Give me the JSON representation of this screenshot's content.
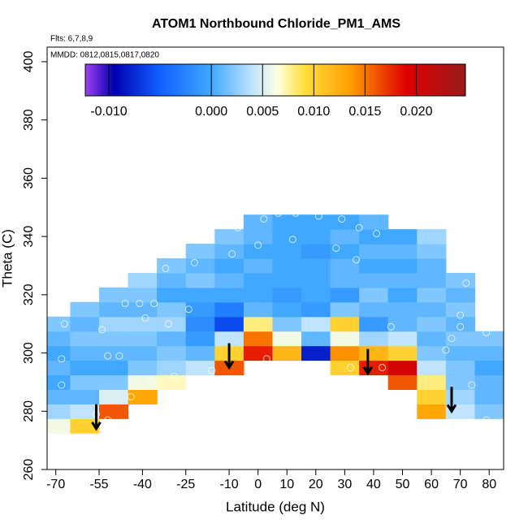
{
  "chart_data": {
    "type": "heatmap",
    "title": "ATOM1 Northbound Chloride_PM1_AMS",
    "annotations": [
      "Flts: 6,7,8,9",
      "MMDD: 0812,0815,0817,0820"
    ],
    "x_label": "Latitude (deg N)",
    "y_label": "Theta (C)",
    "xlim": [
      -73,
      85
    ],
    "ylim": [
      260,
      405
    ],
    "xticks": [
      -70,
      -55,
      -40,
      -25,
      -10,
      0,
      10,
      20,
      30,
      40,
      50,
      60,
      70,
      80
    ],
    "yticks": [
      260,
      280,
      300,
      320,
      340,
      360,
      380,
      400
    ],
    "x": [
      -70,
      -60,
      -50,
      -40,
      -30,
      -20,
      -10,
      0,
      10,
      20,
      30,
      40,
      50,
      60,
      70,
      80
    ],
    "y": [
      275,
      280,
      285,
      290,
      295,
      300,
      305,
      310,
      315,
      320,
      325,
      330,
      335,
      340,
      345
    ],
    "z": [
      [
        0.006,
        0.01,
        null,
        null,
        null,
        null,
        null,
        null,
        null,
        null,
        null,
        null,
        null,
        null,
        null,
        null
      ],
      [
        0.003,
        0.004,
        0.016,
        null,
        null,
        null,
        null,
        null,
        null,
        null,
        null,
        null,
        null,
        0.013,
        0.004,
        0.002
      ],
      [
        0.001,
        0.001,
        0.005,
        0.013,
        null,
        null,
        null,
        null,
        null,
        null,
        null,
        null,
        null,
        0.01,
        0.003,
        0.001
      ],
      [
        0.0,
        0.002,
        0.002,
        0.006,
        0.007,
        null,
        null,
        null,
        null,
        null,
        null,
        null,
        0.016,
        0.008,
        0.002,
        0.001
      ],
      [
        0.001,
        0.0,
        0.0,
        0.002,
        0.003,
        0.004,
        0.016,
        null,
        null,
        null,
        0.01,
        0.018,
        0.02,
        0.004,
        0.002,
        0.0
      ],
      [
        0.0,
        0.001,
        0.001,
        0.001,
        0.002,
        0.001,
        0.01,
        0.018,
        0.012,
        -0.008,
        0.014,
        0.012,
        0.01,
        0.002,
        0.001,
        0.001
      ],
      [
        0.001,
        0.002,
        0.002,
        0.002,
        0.001,
        -0.001,
        0.004,
        0.015,
        0.006,
        0.001,
        0.006,
        0.003,
        0.004,
        0.001,
        0.002,
        0.002
      ],
      [
        0.002,
        0.001,
        0.003,
        0.003,
        0.003,
        -0.002,
        -0.006,
        0.008,
        0.002,
        0.004,
        0.01,
        -0.001,
        0.001,
        0.002,
        0.001,
        null
      ],
      [
        null,
        0.002,
        0.001,
        0.001,
        0.002,
        -0.001,
        -0.003,
        0.001,
        0.0,
        -0.001,
        0.002,
        0.001,
        0.001,
        0.001,
        0.002,
        null
      ],
      [
        null,
        null,
        0.002,
        0.002,
        0.0,
        0.0,
        0.0,
        0.0,
        -0.001,
        0.0,
        -0.001,
        0.002,
        0.0,
        0.002,
        0.001,
        null
      ],
      [
        null,
        null,
        null,
        0.003,
        0.001,
        0.002,
        0.001,
        0.0,
        0.0,
        0.0,
        0.001,
        0.001,
        0.001,
        0.001,
        0.002,
        null
      ],
      [
        null,
        null,
        null,
        null,
        0.002,
        0.001,
        0.0,
        0.001,
        0.0,
        0.0,
        0.001,
        0.0,
        0.0,
        0.001,
        null,
        null
      ],
      [
        null,
        null,
        null,
        null,
        null,
        0.002,
        0.001,
        0.0,
        0.0,
        -0.001,
        0.0,
        0.001,
        0.001,
        0.002,
        null,
        null
      ],
      [
        null,
        null,
        null,
        null,
        null,
        null,
        0.002,
        0.001,
        0.0,
        0.0,
        0.001,
        0.0,
        0.0,
        0.003,
        null,
        null
      ],
      [
        null,
        null,
        null,
        null,
        null,
        null,
        null,
        0.001,
        0.0,
        0.0,
        0.0,
        0.001,
        null,
        null,
        null,
        null
      ]
    ],
    "colorscale": [
      [
        -0.0123,
        "#a040f0"
      ],
      [
        -0.0095,
        "#0000b0"
      ],
      [
        -0.005,
        "#1060ff"
      ],
      [
        0.0,
        "#40a8ff"
      ],
      [
        0.004,
        "#c0e4ff"
      ],
      [
        0.0065,
        "#ffffe0"
      ],
      [
        0.009,
        "#ffe040"
      ],
      [
        0.0135,
        "#ffa000"
      ],
      [
        0.019,
        "#e00000"
      ],
      [
        0.0248,
        "#9a1a1a"
      ]
    ],
    "colorbar_lim": [
      -0.0123,
      0.0248
    ],
    "colorbar_ticks": [
      {
        "value": -0.01,
        "label": "-0.010"
      },
      {
        "value": 0,
        "label": "0.000"
      },
      0.005,
      {
        "value": 0.01,
        "label": "0.010"
      },
      0.015,
      {
        "value": 0.02,
        "label": "0.020"
      }
    ],
    "points": {
      "x": [
        -67,
        -68,
        -68,
        -54,
        -52,
        -48,
        -46,
        -41,
        -36,
        -39,
        -31,
        -32,
        -22,
        -24,
        -29,
        -16,
        -20,
        -7,
        -9,
        2,
        0,
        7,
        13,
        12,
        3,
        16,
        21,
        29,
        27,
        34,
        32,
        35,
        41,
        43,
        46,
        70,
        72,
        70,
        67,
        65,
        77,
        79,
        74,
        79,
        -56,
        -52,
        -51,
        -44,
        -37,
        70
      ],
      "y": [
        310,
        298,
        289,
        308,
        299,
        299,
        317,
        317,
        317,
        312,
        310,
        329,
        331,
        315,
        292,
        294,
        342,
        343,
        334,
        346,
        337,
        348,
        348,
        339,
        298,
        296,
        347,
        346,
        336,
        332,
        295,
        343,
        341,
        295,
        309,
        344,
        324,
        313,
        305,
        301,
        321,
        307,
        289,
        277,
        279,
        277,
        276,
        285,
        290,
        309
      ]
    },
    "markers": {
      "x": [
        -56,
        -10,
        38,
        67
      ],
      "y": [
        274,
        295,
        293,
        280
      ]
    }
  }
}
